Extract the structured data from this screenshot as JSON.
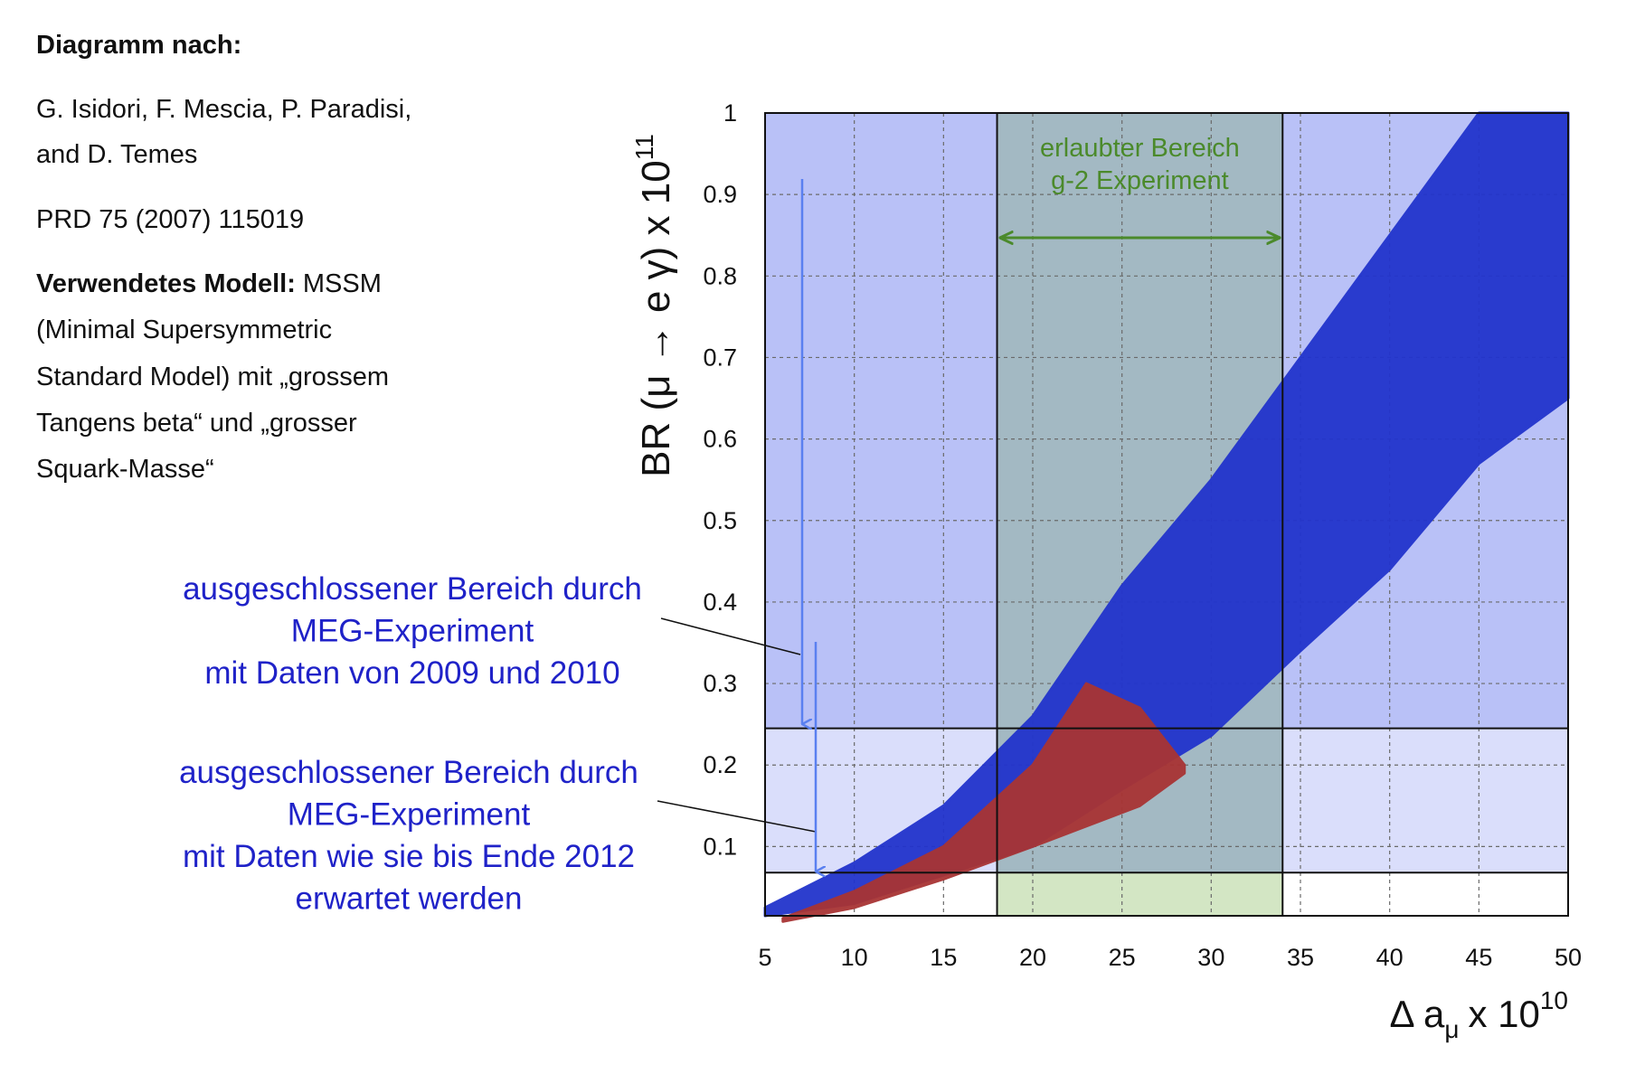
{
  "source": {
    "heading": "Diagramm nach:",
    "authors": [
      "G. Isidori, F. Mescia, P. Paradisi,",
      "and D. Temes"
    ],
    "reference": "PRD 75 (2007) 115019",
    "model_heading": "Verwendetes Modell:",
    "model": [
      "MSSM",
      "(Minimal Supersymmetric",
      "Standard Model) mit „grossem",
      "Tangens beta“ und „grosser",
      "Squark-Masse“"
    ]
  },
  "chart_data": {
    "type": "band",
    "xlabel": {
      "text": "Δ a",
      "sub": "μ",
      "mid": "x 10",
      "sup": "10"
    },
    "ylabel": {
      "text": "BR (μ → e γ) x 10",
      "sup": "11"
    },
    "xlim": [
      5,
      50
    ],
    "ylim": [
      0.015,
      1
    ],
    "xticks": [
      5,
      10,
      15,
      20,
      25,
      30,
      35,
      40,
      45,
      50
    ],
    "yticks": [
      0.1,
      0.2,
      0.3,
      0.4,
      0.5,
      0.6,
      0.7,
      0.8,
      0.9,
      1
    ],
    "grid": true,
    "series": [
      {
        "color": "#2234cc",
        "x": [
          5,
          10,
          15,
          20,
          25,
          30,
          35,
          40,
          45,
          50
        ],
        "high": [
          0.025,
          0.08,
          0.15,
          0.26,
          0.42,
          0.55,
          0.7,
          0.85,
          1,
          1
        ],
        "low": [
          0.015,
          0.03,
          0.065,
          0.1,
          0.17,
          0.236,
          0.34,
          0.44,
          0.57,
          0.65
        ]
      },
      {
        "color": "#a83434",
        "x": [
          6,
          10,
          15,
          20,
          23,
          26,
          28.5
        ],
        "high": [
          0.012,
          0.045,
          0.1,
          0.2,
          0.3,
          0.27,
          0.2
        ],
        "low": [
          0.008,
          0.025,
          0.06,
          0.1,
          0.125,
          0.15,
          0.19
        ]
      }
    ],
    "region": {
      "x": [
        18,
        34
      ],
      "color": "#a3b9c3",
      "below_color": "#d3e6c4",
      "label": [
        "erlaubter Bereich",
        "g-2 Experiment"
      ]
    },
    "limits": [
      {
        "y": 0.245,
        "color": "#b9c1f7",
        "label": [
          "ausgeschlossener Bereich durch",
          "MEG-Experiment",
          "mit Daten von 2009 und 2010"
        ]
      },
      {
        "y": 0.068,
        "color": "#dadefb",
        "label": [
          "ausgeschlossener Bereich durch",
          "MEG-Experiment",
          "mit Daten wie sie bis Ende 2012",
          "erwartet werden"
        ]
      }
    ]
  }
}
